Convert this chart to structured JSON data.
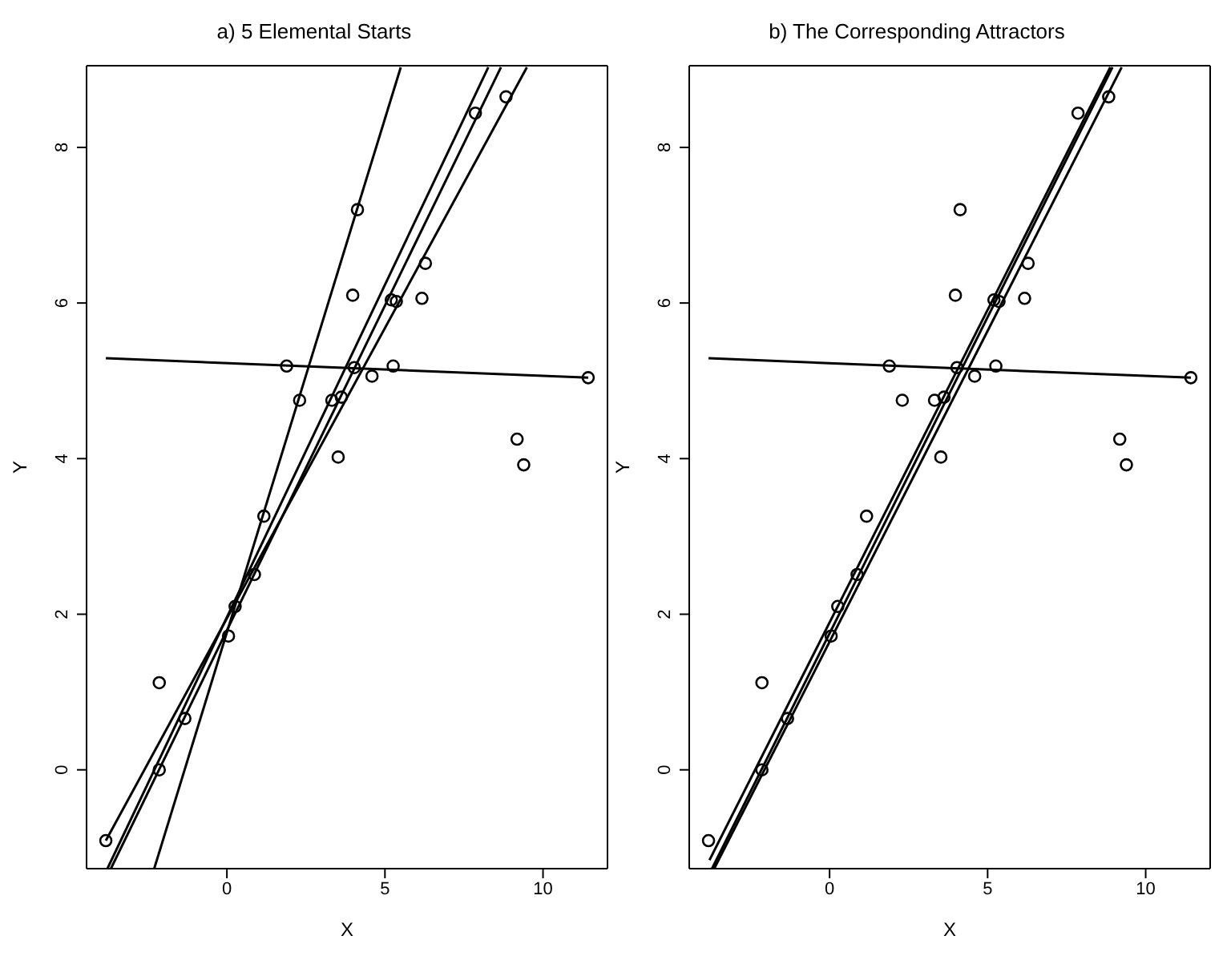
{
  "chart_data": [
    {
      "type": "scatter",
      "title": "a) 5 Elemental Starts",
      "xlabel": "X",
      "ylabel": "Y",
      "xlim": [
        -4.44,
        12.04
      ],
      "ylim": [
        -1.27,
        9.05
      ],
      "xticks": [
        0,
        5,
        10
      ],
      "yticks": [
        0,
        2,
        4,
        6,
        8
      ],
      "series": [
        {
          "marker": "circle",
          "color": "#000000",
          "x": [
            -3.83,
            -2.14,
            -2.14,
            -1.33,
            1.17,
            0.87,
            0.26,
            0.05,
            4.13,
            3.98,
            1.89,
            2.3,
            3.32,
            3.62,
            4.03,
            4.59,
            5.26,
            3.52,
            5.2,
            5.36,
            6.17,
            6.28,
            7.86,
            8.83,
            9.18,
            9.39,
            11.43
          ],
          "values": [
            -0.91,
            1.12,
            0,
            0.66,
            3.26,
            2.51,
            2.1,
            1.72,
            7.2,
            6.1,
            5.19,
            4.75,
            4.75,
            4.79,
            5.17,
            5.06,
            5.19,
            4.02,
            6.04,
            6.02,
            6.06,
            6.51,
            8.44,
            8.65,
            4.25,
            3.92,
            5.04
          ]
        },
        {
          "type": "line",
          "marker": "none",
          "color": "#000000",
          "x": [
            -2.3,
            5.5
          ],
          "values": [
            -1.27,
            9.03
          ]
        },
        {
          "type": "line",
          "marker": "none",
          "color": "#000000",
          "x": [
            -3.78,
            8.27
          ],
          "values": [
            -1.27,
            9.03
          ]
        },
        {
          "type": "line",
          "marker": "none",
          "color": "#000000",
          "x": [
            -3.67,
            8.67
          ],
          "values": [
            -1.27,
            9.03
          ]
        },
        {
          "type": "line",
          "marker": "none",
          "color": "#000000",
          "x": [
            -3.83,
            9.49
          ],
          "values": [
            -0.91,
            9.03
          ]
        },
        {
          "type": "line",
          "marker": "none",
          "color": "#000000",
          "x": [
            -3.83,
            11.43
          ],
          "values": [
            5.29,
            5.04
          ]
        }
      ]
    },
    {
      "type": "scatter",
      "title": "b) The Corresponding Attractors",
      "xlabel": "X",
      "ylabel": "Y",
      "xlim": [
        -4.44,
        12.04
      ],
      "ylim": [
        -1.27,
        9.05
      ],
      "xticks": [
        0,
        5,
        10
      ],
      "yticks": [
        0,
        2,
        4,
        6,
        8
      ],
      "series": [
        {
          "marker": "circle",
          "color": "#000000",
          "x": [
            -3.83,
            -2.14,
            -2.14,
            -1.33,
            1.17,
            0.87,
            0.26,
            0.05,
            4.13,
            3.98,
            1.89,
            2.3,
            3.32,
            3.62,
            4.03,
            4.59,
            5.26,
            3.52,
            5.2,
            5.36,
            6.17,
            6.28,
            7.86,
            8.83,
            9.18,
            9.39,
            11.43
          ],
          "values": [
            -0.91,
            1.12,
            0,
            0.66,
            3.26,
            2.51,
            2.1,
            1.72,
            7.2,
            6.1,
            5.19,
            4.75,
            4.75,
            4.79,
            5.17,
            5.06,
            5.19,
            4.02,
            6.04,
            6.02,
            6.06,
            6.51,
            8.44,
            8.65,
            4.25,
            3.92,
            5.04
          ]
        },
        {
          "type": "line",
          "marker": "none",
          "color": "#000000",
          "x": [
            -3.8,
            8.88
          ],
          "values": [
            -1.16,
            9.03
          ]
        },
        {
          "type": "line",
          "marker": "none",
          "color": "#000000",
          "x": [
            -3.65,
            9.24
          ],
          "values": [
            -1.27,
            9.03
          ]
        },
        {
          "type": "line",
          "marker": "none",
          "color": "#000000",
          "x": [
            -3.72,
            8.95
          ],
          "values": [
            -1.27,
            9.03
          ]
        },
        {
          "type": "line",
          "marker": "none",
          "color": "#000000",
          "x": [
            -3.83,
            11.43
          ],
          "values": [
            5.29,
            5.04
          ]
        }
      ]
    }
  ]
}
